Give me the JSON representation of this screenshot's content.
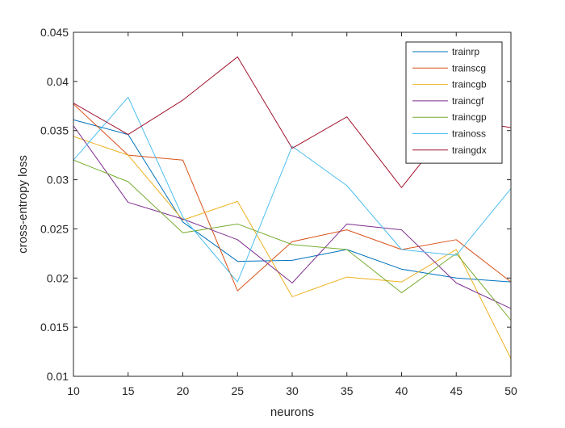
{
  "chart_data": {
    "type": "line",
    "title": "",
    "xlabel": "neurons",
    "ylabel": "cross-entropy loss",
    "xlim": [
      10,
      50
    ],
    "ylim": [
      0.01,
      0.045
    ],
    "grid": false,
    "legend_position": "top-right",
    "x": [
      10,
      15,
      20,
      25,
      30,
      35,
      40,
      45,
      50
    ],
    "x_ticks": [
      10,
      15,
      20,
      25,
      30,
      35,
      40,
      45,
      50
    ],
    "x_tick_labels": [
      "10",
      "15",
      "20",
      "25",
      "30",
      "35",
      "40",
      "45",
      "50"
    ],
    "y_ticks": [
      0.01,
      0.015,
      0.02,
      0.025,
      0.03,
      0.035,
      0.04,
      0.045
    ],
    "y_tick_labels": [
      "0.01",
      "0.015",
      "0.02",
      "0.025",
      "0.03",
      "0.035",
      "0.04",
      "0.045"
    ],
    "series": [
      {
        "name": "trainrp",
        "color": "#0072BD",
        "values": [
          0.0361,
          0.0346,
          0.0257,
          0.0217,
          0.0218,
          0.0229,
          0.0209,
          0.02,
          0.0196
        ]
      },
      {
        "name": "trainscg",
        "color": "#D95319",
        "values": [
          0.0377,
          0.0325,
          0.032,
          0.0187,
          0.0237,
          0.0249,
          0.0229,
          0.0239,
          0.0196
        ]
      },
      {
        "name": "traincgb",
        "color": "#EDB120",
        "values": [
          0.0344,
          0.0325,
          0.0259,
          0.0278,
          0.0181,
          0.0201,
          0.0196,
          0.0229,
          0.0118
        ]
      },
      {
        "name": "traincgf",
        "color": "#7E2F8E",
        "values": [
          0.0355,
          0.0277,
          0.026,
          0.0239,
          0.0195,
          0.0255,
          0.0249,
          0.0195,
          0.0169
        ]
      },
      {
        "name": "traincgp",
        "color": "#77AC30",
        "values": [
          0.032,
          0.0298,
          0.0246,
          0.0255,
          0.0234,
          0.0229,
          0.0185,
          0.0225,
          0.0157
        ]
      },
      {
        "name": "trainoss",
        "color": "#4DBEEE",
        "values": [
          0.032,
          0.0384,
          0.0262,
          0.0196,
          0.0334,
          0.0294,
          0.0229,
          0.0223,
          0.0291
        ]
      },
      {
        "name": "traingdx",
        "color": "#A2142F",
        "values": [
          0.0378,
          0.0346,
          0.0381,
          0.0425,
          0.0332,
          0.0364,
          0.0292,
          0.0362,
          0.0353
        ]
      }
    ]
  }
}
